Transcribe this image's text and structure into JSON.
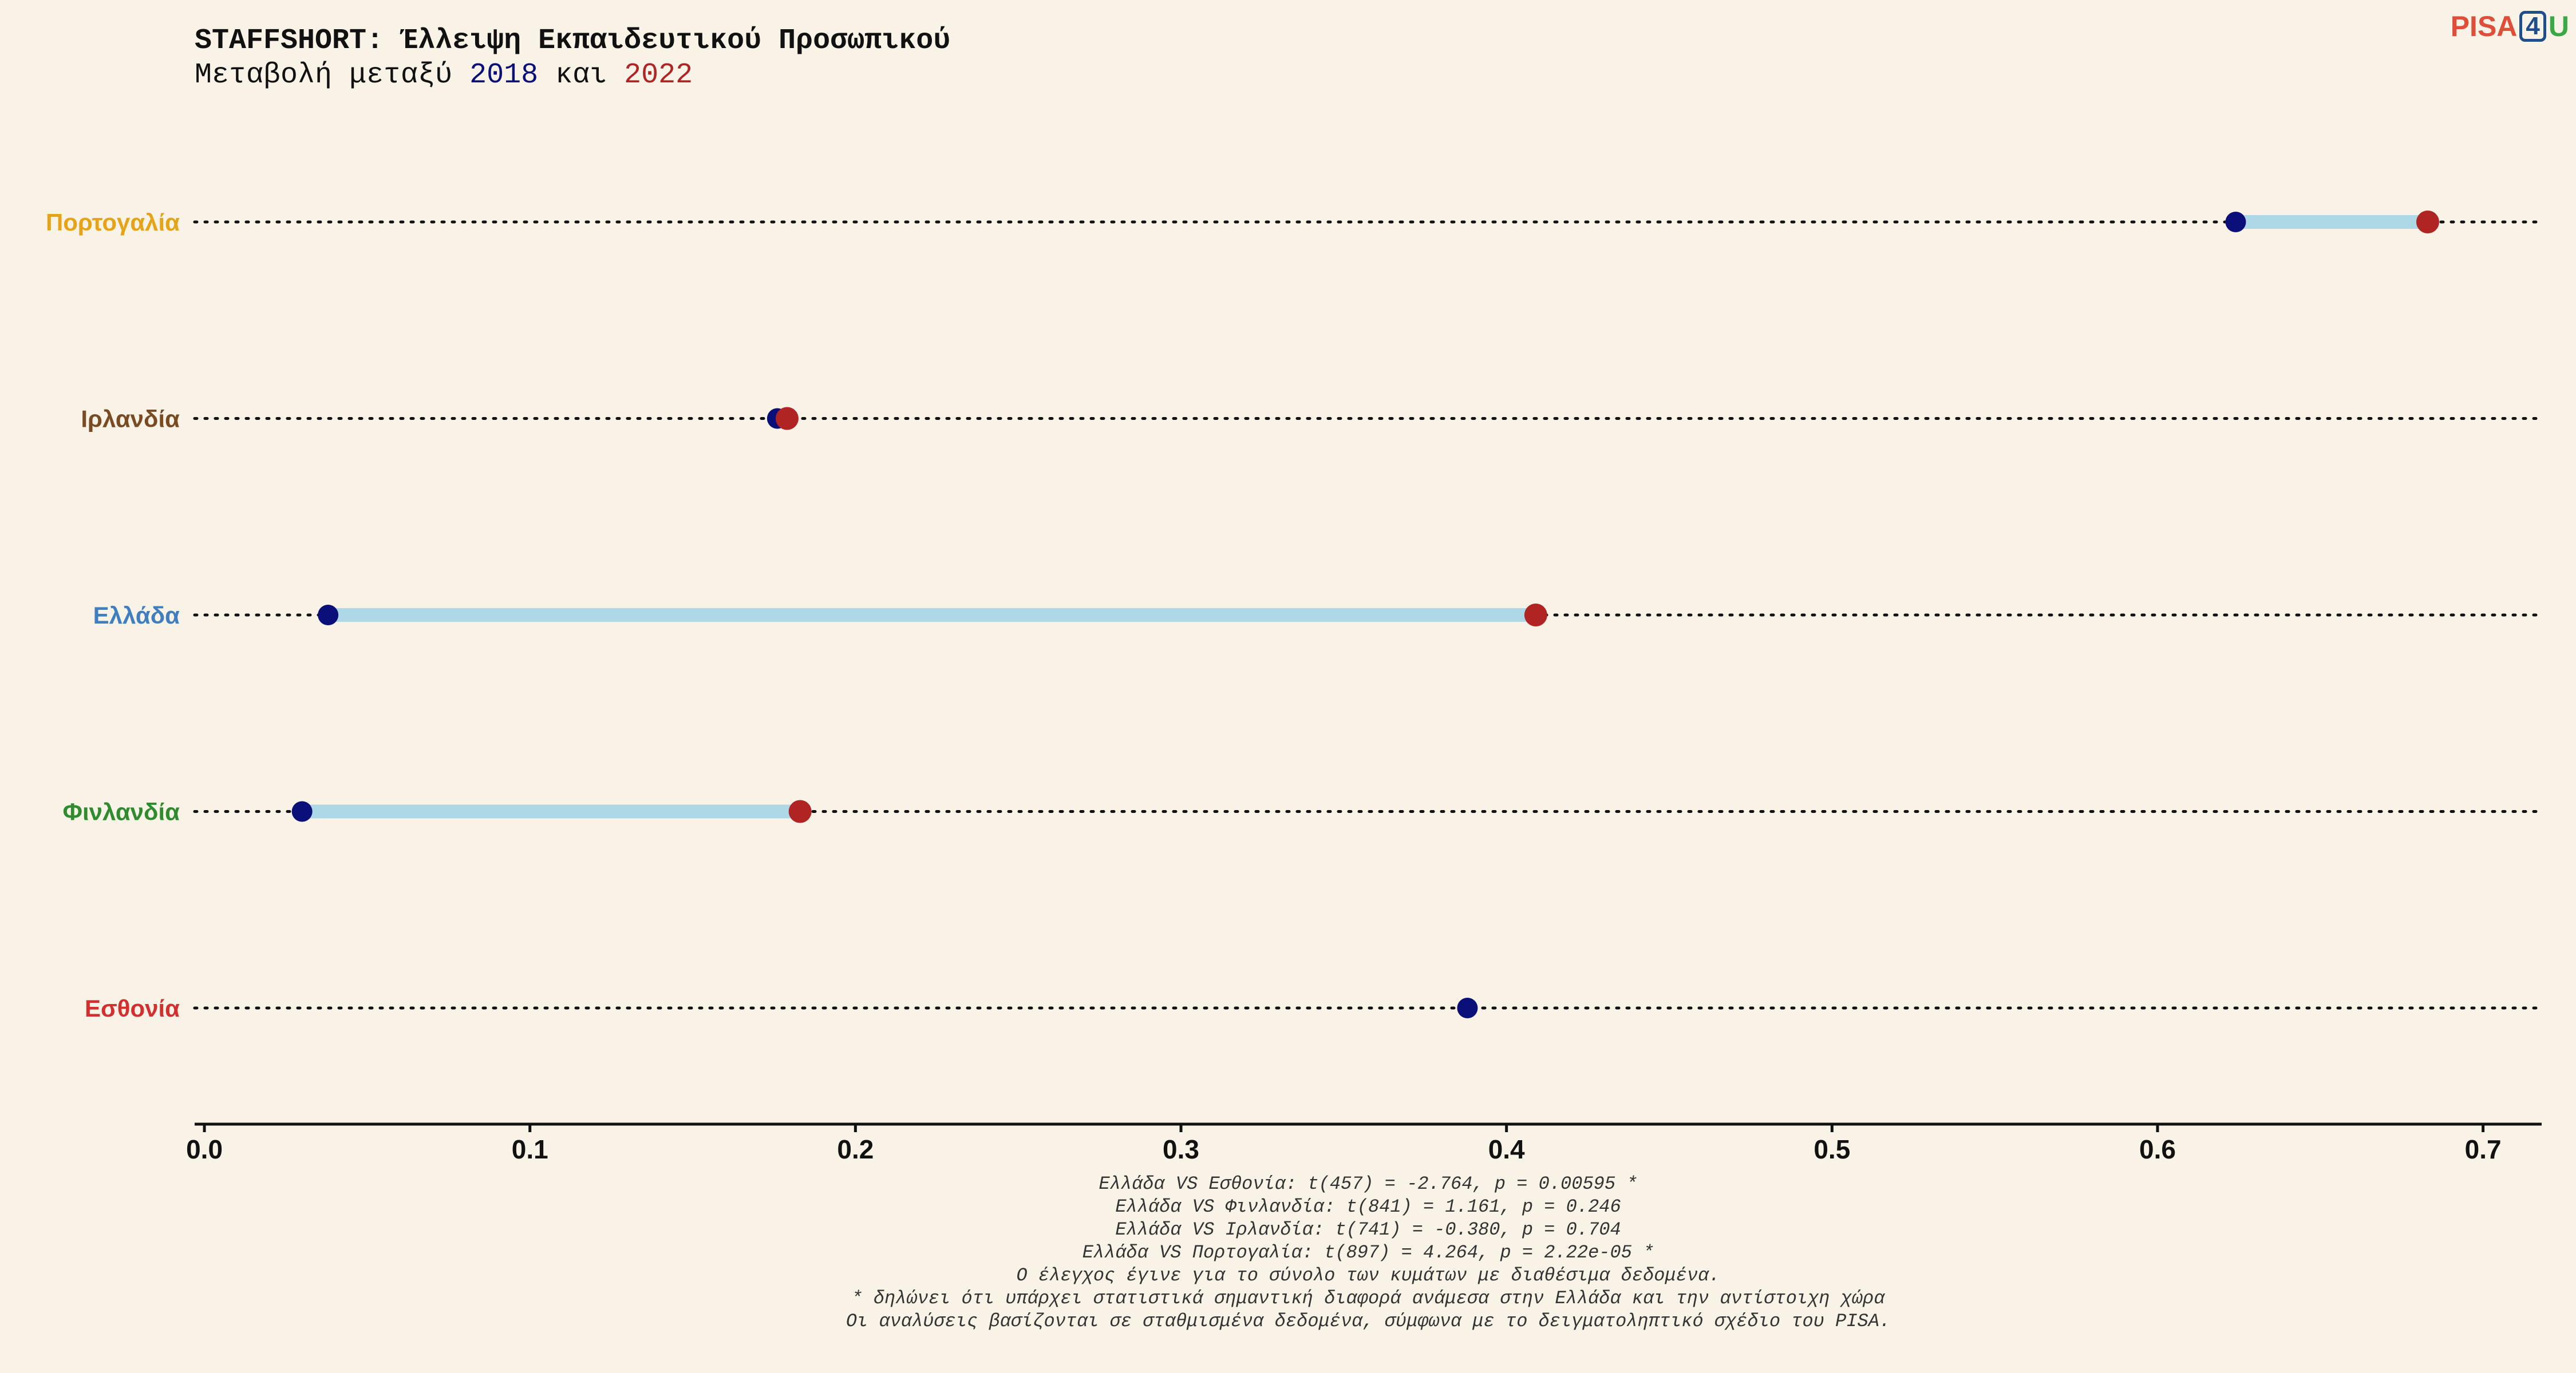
{
  "title": {
    "line1": "STAFFSHORT: Έλλειψη Εκπαιδευτικού Προσωπικού",
    "line2_prefix": "Μεταβολή μεταξύ ",
    "line2_year1": "2018",
    "line2_mid": " και ",
    "line2_year2": "2022"
  },
  "logo": {
    "pisa": "PISA",
    "four": "4",
    "u": "U"
  },
  "colors": {
    "background": "#f8f3e6",
    "year_2018": "#0b0f7a",
    "year_2022": "#b02424",
    "segment": "#add8e6",
    "dotted_line": "#111111"
  },
  "chart_data": {
    "type": "dumbbell",
    "x_ticks": [
      "0.0",
      "0.1",
      "0.2",
      "0.3",
      "0.4",
      "0.5",
      "0.6",
      "0.7"
    ],
    "xlim": [
      -0.003,
      0.718
    ],
    "grid": false,
    "categories": [
      {
        "name": "Πορτογαλία",
        "color": "#e6a317",
        "v2018": 0.624,
        "v2022": 0.683
      },
      {
        "name": "Ιρλανδία",
        "color": "#7a4a22",
        "v2018": 0.176,
        "v2022": 0.179
      },
      {
        "name": "Ελλάδα",
        "color": "#3f7ebf",
        "v2018": 0.038,
        "v2022": 0.409
      },
      {
        "name": "Φινλανδία",
        "color": "#2e8b2e",
        "v2018": 0.03,
        "v2022": 0.183
      },
      {
        "name": "Εσθονία",
        "color": "#d32f2f",
        "v2018": 0.388,
        "v2022": null
      }
    ]
  },
  "notes": [
    "Ελλάδα VS Εσθονία: t(457) = -2.764, p = 0.00595 *",
    "Ελλάδα VS Φινλανδία: t(841) = 1.161, p = 0.246",
    "Ελλάδα VS Ιρλανδία: t(741) = -0.380, p = 0.704",
    "Ελλάδα VS Πορτογαλία: t(897) = 4.264, p = 2.22e-05 *",
    "Ο έλεγχος έγινε για το σύνολο των κυμάτων με διαθέσιμα δεδομένα.",
    "* δηλώνει ότι υπάρχει στατιστικά σημαντική διαφορά ανάμεσα στην Ελλάδα και την αντίστοιχη χώρα",
    "Οι αναλύσεις βασίζονται σε σταθμισμένα δεδομένα, σύμφωνα με το δειγματοληπτικό σχέδιο του PISA."
  ]
}
